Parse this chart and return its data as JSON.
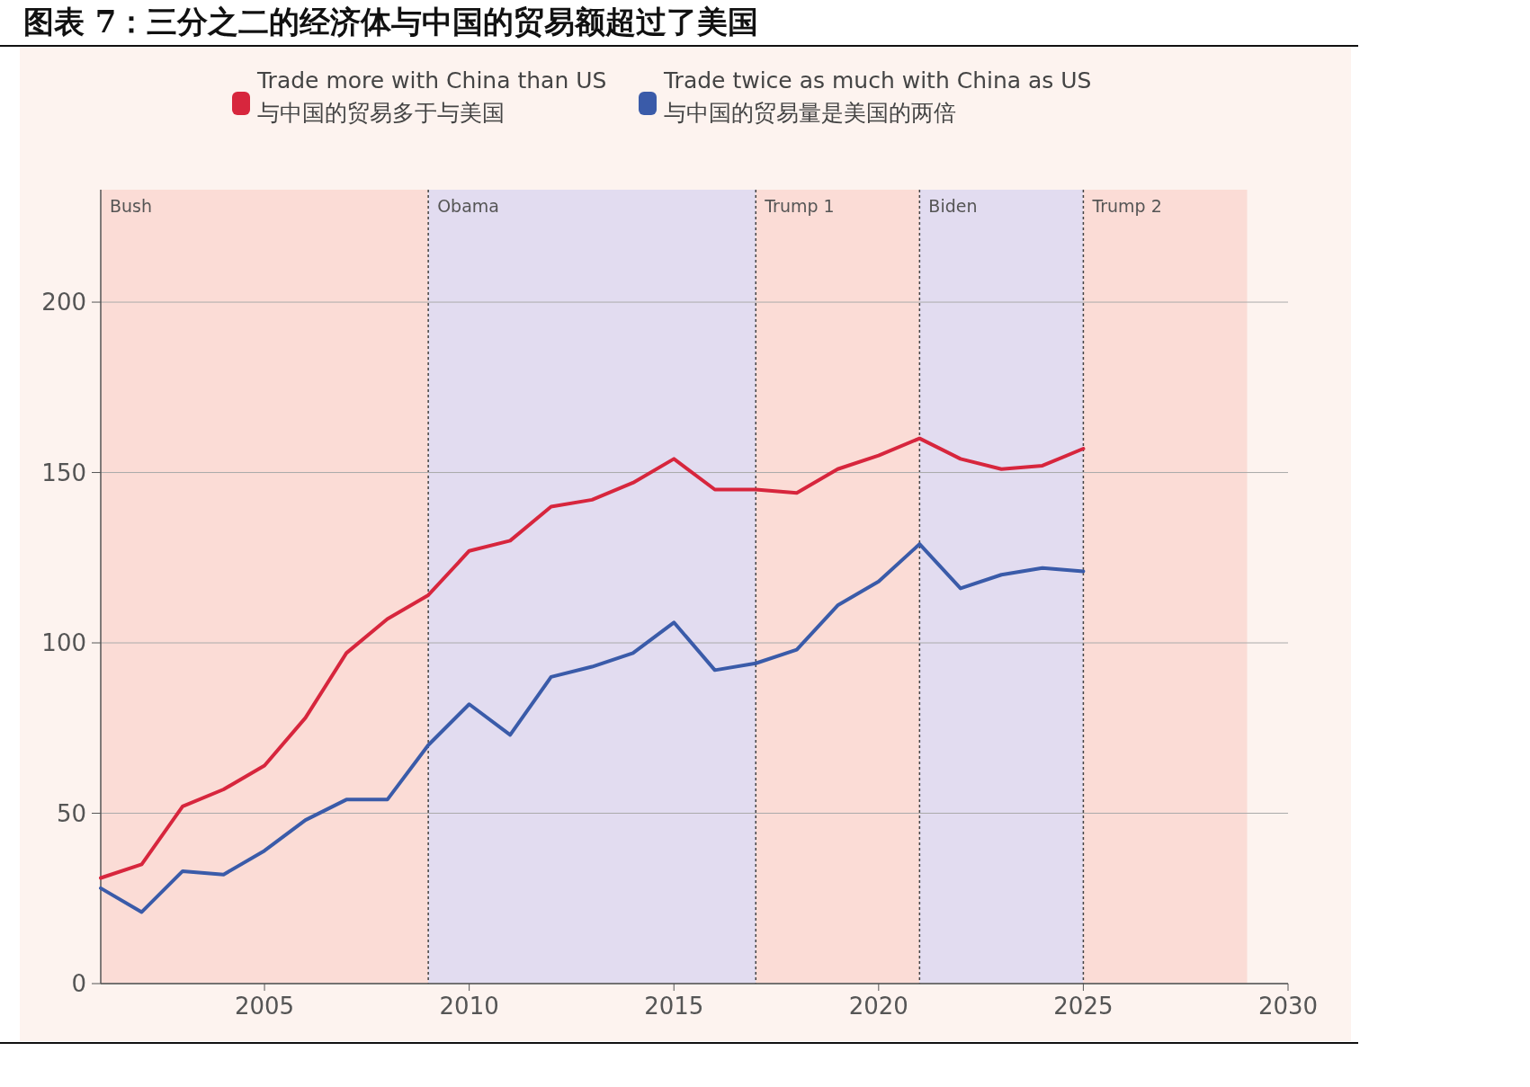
{
  "chart_data": {
    "type": "line",
    "title": "图表 7：三分之二的经济体与中国的贸易额超过了美国",
    "x": [
      2001,
      2002,
      2003,
      2004,
      2005,
      2006,
      2007,
      2008,
      2009,
      2010,
      2011,
      2012,
      2013,
      2014,
      2015,
      2016,
      2017,
      2018,
      2019,
      2020,
      2021,
      2022,
      2023,
      2024,
      2025
    ],
    "series": [
      {
        "name": "Trade more with China than US\n与中国的贸易多于与美国",
        "color": "#d7263d",
        "values": [
          31,
          35,
          52,
          57,
          64,
          78,
          97,
          107,
          114,
          127,
          130,
          140,
          142,
          147,
          154,
          145,
          145,
          144,
          151,
          155,
          160,
          154,
          151,
          152,
          157
        ]
      },
      {
        "name": "Trade twice as much with China as US\n与中国的贸易量是美国的两倍",
        "color": "#3a5ba9",
        "values": [
          28,
          21,
          33,
          32,
          39,
          48,
          54,
          54,
          70,
          82,
          73,
          90,
          93,
          97,
          106,
          92,
          94,
          98,
          111,
          118,
          129,
          116,
          120,
          122,
          121
        ]
      }
    ],
    "xlim": [
      2001,
      2030
    ],
    "xticks": [
      2005,
      2010,
      2015,
      2020,
      2025,
      2030
    ],
    "ylim": [
      0,
      233
    ],
    "yticks": [
      0,
      50,
      100,
      150,
      200
    ],
    "grid": "y",
    "legend": "top",
    "line_style": "solid",
    "marker": "none",
    "bands": [
      {
        "axis": "x",
        "from": 2001,
        "to": 2009,
        "label": "Bush",
        "color": "#fbdcd6"
      },
      {
        "axis": "x",
        "from": 2009,
        "to": 2017,
        "label": "Obama",
        "color": "#e2dcf0"
      },
      {
        "axis": "x",
        "from": 2017,
        "to": 2021,
        "label": "Trump 1",
        "color": "#fbdcd6"
      },
      {
        "axis": "x",
        "from": 2021,
        "to": 2025,
        "label": "Biden",
        "color": "#e2dcf0"
      },
      {
        "axis": "x",
        "from": 2025,
        "to": 2029,
        "label": "Trump 2",
        "color": "#fbdcd6"
      }
    ]
  }
}
